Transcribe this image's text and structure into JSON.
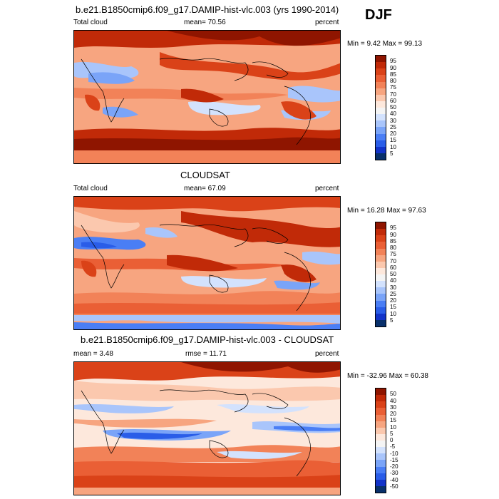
{
  "season": "DJF",
  "colors": {
    "abs": [
      "#08306b",
      "#1233c9",
      "#2a5de8",
      "#4a7ef5",
      "#7aa4f8",
      "#a9c5fb",
      "#d3e2fd",
      "#f4f4f4",
      "#fde8dc",
      "#fbc8ae",
      "#f7a580",
      "#f28258",
      "#ea5f35",
      "#da4218",
      "#c12a08",
      "#8f1500"
    ],
    "diff": [
      "#08306b",
      "#1233c9",
      "#2a5de8",
      "#4a7ef5",
      "#7aa4f8",
      "#a9c5fb",
      "#d3e2fd",
      "#f4f4f4",
      "#fde8dc",
      "#fbc8ae",
      "#f7a580",
      "#f28258",
      "#ea5f35",
      "#da4218",
      "#c12a08",
      "#8f1500"
    ]
  },
  "panels": [
    {
      "title": "b.e21.B1850cmip6.f09_g17.DAMIP-hist-vlc.003 (yrs 1990-2014)",
      "left_label": "Total cloud",
      "center_label": "mean=  70.56",
      "right_label": "percent",
      "minmax": "Min =   9.42 Max =  99.13",
      "colorbar_ticks": [
        "95",
        "90",
        "85",
        "80",
        "75",
        "70",
        "60",
        "50",
        "40",
        "30",
        "25",
        "20",
        "15",
        "10",
        "5"
      ]
    },
    {
      "title": "CLOUDSAT",
      "left_label": "Total cloud",
      "center_label": "mean=  67.09",
      "right_label": "percent",
      "minmax": "Min =  16.28 Max =  97.63",
      "colorbar_ticks": [
        "95",
        "90",
        "85",
        "80",
        "75",
        "70",
        "60",
        "50",
        "40",
        "30",
        "25",
        "20",
        "15",
        "10",
        "5"
      ]
    },
    {
      "title": "b.e21.B1850cmip6.f09_g17.DAMIP-hist-vlc.003 - CLOUDSAT",
      "left_label": "mean =   3.48",
      "center_label": "rmse =  11.71",
      "right_label": "percent",
      "minmax": "Min = -32.96 Max =  60.38",
      "colorbar_ticks": [
        "50",
        "40",
        "30",
        "20",
        "15",
        "10",
        "5",
        "0",
        "-5",
        "-10",
        "-15",
        "-20",
        "-30",
        "-40",
        "-50"
      ]
    }
  ]
}
